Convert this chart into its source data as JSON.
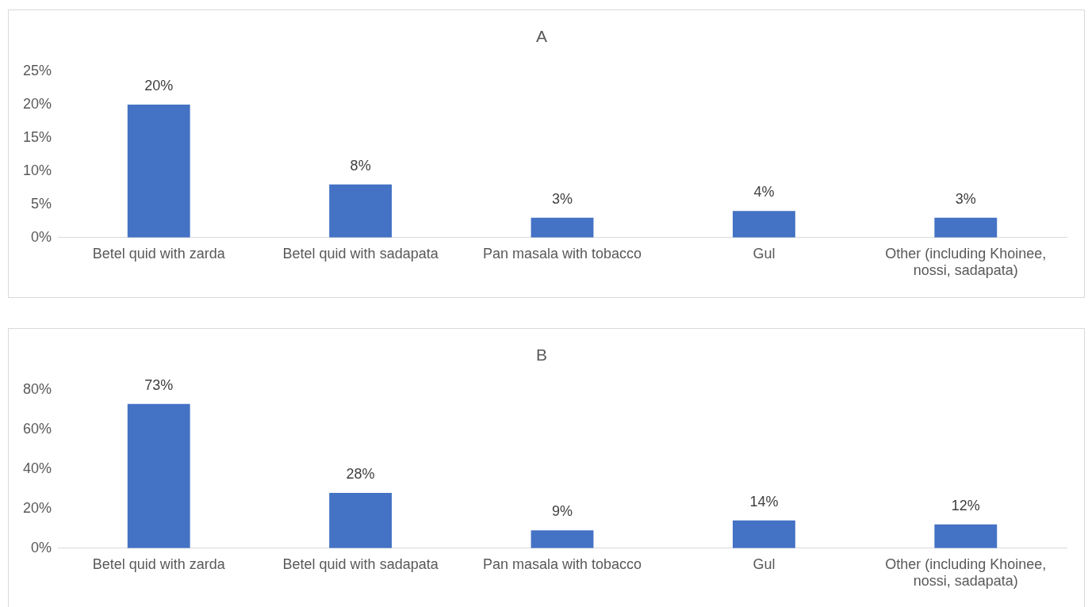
{
  "chart_data": [
    {
      "type": "bar",
      "title": "A",
      "categories": [
        "Betel quid with zarda",
        "Betel quid with sadapata",
        "Pan masala with tobacco",
        "Gul",
        "Other (including Khoinee, nossi, sadapata)"
      ],
      "values": [
        20,
        8,
        3,
        4,
        3
      ],
      "value_labels": [
        "20%",
        "8%",
        "3%",
        "4%",
        "3%"
      ],
      "color": "#4472c4",
      "ylim": [
        0,
        25
      ],
      "yticks": [
        {
          "value": 0,
          "label": "0%"
        },
        {
          "value": 5,
          "label": "5%"
        },
        {
          "value": 10,
          "label": "10%"
        },
        {
          "value": 15,
          "label": "15%"
        },
        {
          "value": 20,
          "label": "20%"
        },
        {
          "value": 25,
          "label": "25%"
        }
      ],
      "grid": false,
      "legend": false
    },
    {
      "type": "bar",
      "title": "B",
      "categories": [
        "Betel quid with zarda",
        "Betel quid with sadapata",
        "Pan masala with tobacco",
        "Gul",
        "Other (including Khoinee, nossi, sadapata)"
      ],
      "values": [
        73,
        28,
        9,
        14,
        12
      ],
      "value_labels": [
        "73%",
        "28%",
        "9%",
        "14%",
        "12%"
      ],
      "color": "#4472c4",
      "ylim": [
        0,
        80
      ],
      "yticks": [
        {
          "value": 0,
          "label": "0%"
        },
        {
          "value": 20,
          "label": "20%"
        },
        {
          "value": 40,
          "label": "40%"
        },
        {
          "value": 60,
          "label": "60%"
        },
        {
          "value": 80,
          "label": "80%"
        }
      ],
      "grid": false,
      "legend": false
    }
  ]
}
